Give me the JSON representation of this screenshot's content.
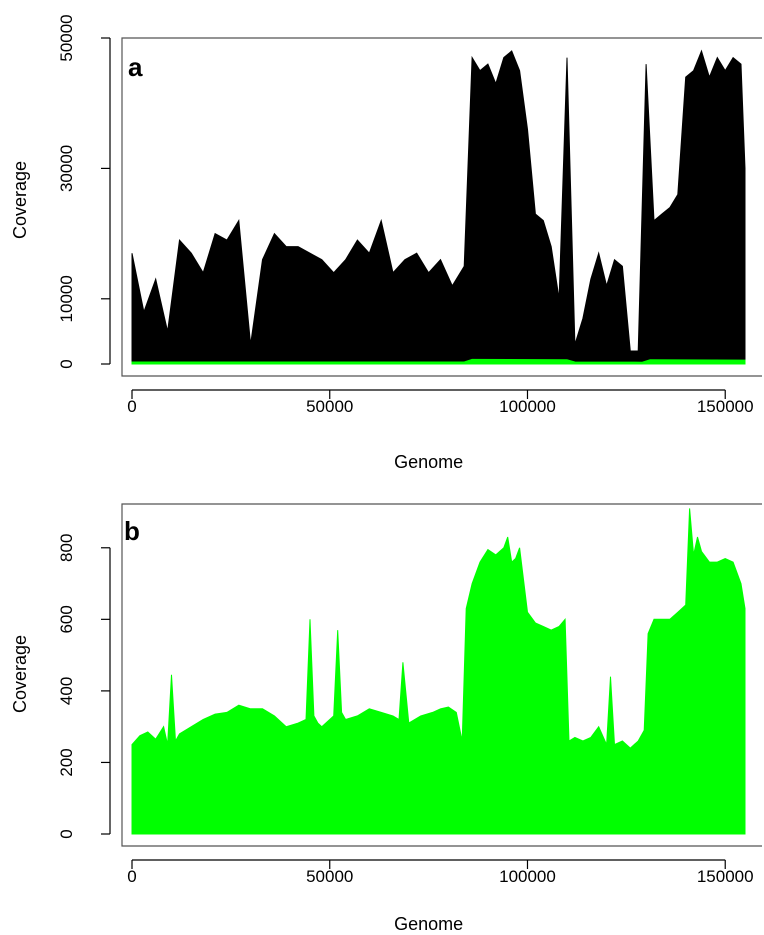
{
  "chart_data": [
    {
      "panel": "a",
      "type": "area",
      "xlabel": "Genome",
      "ylabel": "Coverage",
      "xlim": [
        0,
        155000
      ],
      "ylim": [
        0,
        50000
      ],
      "xticks": [
        0,
        50000,
        100000,
        150000
      ],
      "yticks": [
        0,
        10000,
        30000,
        50000
      ],
      "grid": false,
      "colors": {
        "primary": "#000000",
        "secondary": "#00ff00"
      },
      "series": [
        {
          "color": "#000000",
          "x": [
            0,
            3000,
            6000,
            9000,
            12000,
            15000,
            18000,
            21000,
            24000,
            27000,
            30000,
            33000,
            36000,
            39000,
            42000,
            45000,
            48000,
            51000,
            54000,
            57000,
            60000,
            63000,
            66000,
            69000,
            72000,
            75000,
            78000,
            81000,
            84000,
            86000,
            88000,
            90000,
            92000,
            94000,
            96000,
            98000,
            100000,
            102000,
            104000,
            106000,
            108000,
            110000,
            112000,
            114000,
            116000,
            118000,
            120000,
            122000,
            124000,
            126000,
            128000,
            130000,
            132000,
            134000,
            136000,
            138000,
            140000,
            142000,
            144000,
            146000,
            148000,
            150000,
            152000,
            154000,
            155000
          ],
          "values": [
            17000,
            8000,
            13000,
            5000,
            19000,
            17000,
            14000,
            20000,
            19000,
            22000,
            3000,
            16000,
            20000,
            18000,
            18000,
            17000,
            16000,
            14000,
            16000,
            19000,
            17000,
            22000,
            14000,
            16000,
            17000,
            14000,
            16000,
            12000,
            15000,
            47000,
            45000,
            46000,
            43000,
            47000,
            48000,
            45000,
            36000,
            23000,
            22000,
            18000,
            10000,
            47000,
            3000,
            7000,
            13000,
            17000,
            12000,
            16000,
            15000,
            2000,
            2000,
            46000,
            22000,
            23000,
            24000,
            26000,
            44000,
            45000,
            48000,
            44000,
            47000,
            45000,
            47000,
            46000,
            30000
          ]
        },
        {
          "color": "#00ff00",
          "x": [
            0,
            84000,
            86000,
            110000,
            112000,
            129000,
            131000,
            155000
          ],
          "values": [
            300,
            300,
            700,
            650,
            300,
            280,
            650,
            600
          ]
        }
      ]
    },
    {
      "panel": "b",
      "type": "area",
      "xlabel": "Genome",
      "ylabel": "Coverage",
      "xlim": [
        0,
        155000
      ],
      "ylim": [
        0,
        900
      ],
      "xticks": [
        0,
        50000,
        100000,
        150000
      ],
      "yticks": [
        0,
        200,
        400,
        600,
        800
      ],
      "grid": false,
      "colors": {
        "primary": "#00ff00"
      },
      "series": [
        {
          "color": "#00ff00",
          "x": [
            0,
            2000,
            4000,
            6000,
            8000,
            9000,
            10000,
            11000,
            12000,
            15000,
            18000,
            21000,
            24000,
            27000,
            30000,
            33000,
            36000,
            39000,
            42000,
            44000,
            45000,
            46000,
            47000,
            48000,
            51000,
            52000,
            53000,
            54000,
            57000,
            60000,
            63000,
            66000,
            67500,
            68500,
            70000,
            73000,
            76000,
            78000,
            80000,
            82000,
            83500,
            84500,
            86000,
            88000,
            90000,
            92000,
            94000,
            95000,
            96000,
            97000,
            98000,
            100000,
            102000,
            104000,
            106000,
            108000,
            109500,
            110500,
            112000,
            114000,
            116000,
            118000,
            120000,
            121000,
            122000,
            124000,
            126000,
            128000,
            129500,
            130500,
            132000,
            134000,
            136000,
            138000,
            140000,
            141000,
            142000,
            143000,
            144000,
            146000,
            148000,
            150000,
            152000,
            154000,
            155000
          ],
          "values": [
            250,
            275,
            285,
            265,
            300,
            250,
            445,
            260,
            280,
            300,
            320,
            335,
            340,
            360,
            350,
            350,
            330,
            300,
            310,
            320,
            600,
            330,
            310,
            300,
            330,
            570,
            340,
            320,
            330,
            350,
            340,
            330,
            320,
            480,
            310,
            330,
            340,
            350,
            355,
            340,
            260,
            630,
            700,
            760,
            795,
            780,
            800,
            830,
            760,
            770,
            800,
            620,
            590,
            580,
            570,
            580,
            600,
            260,
            270,
            260,
            270,
            300,
            250,
            440,
            250,
            260,
            240,
            260,
            290,
            560,
            600,
            600,
            600,
            620,
            640,
            910,
            780,
            830,
            790,
            760,
            760,
            770,
            760,
            700,
            630
          ]
        }
      ]
    }
  ]
}
